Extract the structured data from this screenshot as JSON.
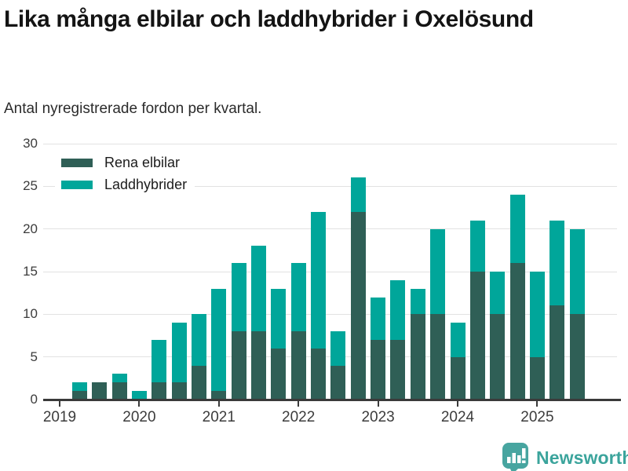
{
  "header": {
    "title": "Lika många elbilar och laddhybrider i Oxelösund",
    "subtitle": "Antal nyregistrerade fordon per kvartal."
  },
  "chart_data": {
    "type": "bar",
    "stacked": true,
    "title": "Lika många elbilar och laddhybrider i Oxelösund",
    "subtitle": "Antal nyregistrerade fordon per kvartal.",
    "categories": [
      "2019 Q1",
      "2019 Q2",
      "2019 Q3",
      "2019 Q4",
      "2020 Q1",
      "2020 Q2",
      "2020 Q3",
      "2020 Q4",
      "2021 Q1",
      "2021 Q2",
      "2021 Q3",
      "2021 Q4",
      "2022 Q1",
      "2022 Q2",
      "2022 Q3",
      "2022 Q4",
      "2023 Q1",
      "2023 Q2",
      "2023 Q3",
      "2023 Q4",
      "2024 Q1",
      "2024 Q2",
      "2024 Q3",
      "2024 Q4",
      "2025 Q1",
      "2025 Q2",
      "2025 Q3"
    ],
    "series": [
      {
        "name": "Rena elbilar",
        "color": "#2f5f56",
        "values": [
          0,
          1,
          2,
          2,
          0,
          2,
          2,
          4,
          1,
          8,
          8,
          6,
          8,
          6,
          4,
          22,
          7,
          7,
          10,
          10,
          5,
          15,
          10,
          16,
          5,
          11,
          10
        ]
      },
      {
        "name": "Laddhybrider",
        "color": "#00a69a",
        "values": [
          0,
          1,
          0,
          1,
          1,
          5,
          7,
          6,
          12,
          8,
          10,
          7,
          8,
          16,
          4,
          4,
          5,
          7,
          3,
          10,
          4,
          6,
          5,
          8,
          10,
          10,
          10
        ]
      }
    ],
    "totals": [
      0,
      2,
      2,
      3,
      1,
      7,
      9,
      10,
      13,
      16,
      18,
      13,
      16,
      22,
      8,
      26,
      12,
      14,
      13,
      20,
      9,
      21,
      15,
      24,
      15,
      21,
      20
    ],
    "year_ticks": [
      {
        "label": "2019",
        "index": 0
      },
      {
        "label": "2020",
        "index": 4
      },
      {
        "label": "2021",
        "index": 8
      },
      {
        "label": "2022",
        "index": 12
      },
      {
        "label": "2023",
        "index": 16
      },
      {
        "label": "2024",
        "index": 20
      },
      {
        "label": "2025",
        "index": 24
      }
    ],
    "yticks": [
      0,
      5,
      10,
      15,
      20,
      25,
      30
    ],
    "ylim": [
      0,
      30
    ],
    "xlabel": "",
    "ylabel": "",
    "grid": "horizontal",
    "legend_position": "top-left"
  },
  "colors": {
    "rena_elbilar": "#2f5f56",
    "laddhybrider": "#00a69a",
    "gridline": "#e2e2e2",
    "axis": "#3a3a3a",
    "logo": "#47a5a0",
    "brand_text": "#3ba49c"
  },
  "footer": {
    "brand": "Newsworthy"
  }
}
